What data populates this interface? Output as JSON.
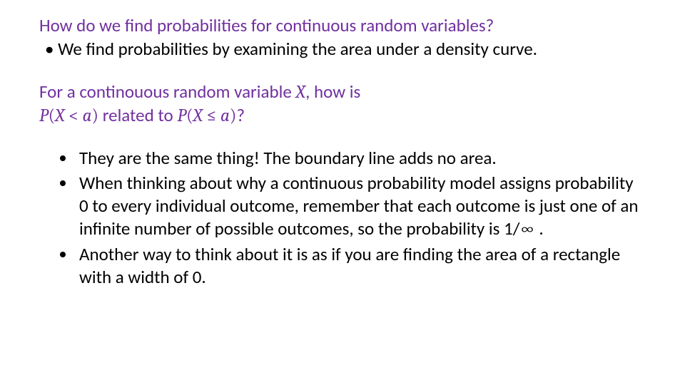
{
  "colors": {
    "heading": "#7030a0",
    "body": "#000000",
    "background": "#ffffff"
  },
  "typography": {
    "body_font": "Calibri",
    "math_font": "Cambria Math",
    "body_size_pt": 19,
    "line_height": 1.28
  },
  "q1": {
    "heading": "How do we find probabilities for continuous random variables?",
    "answer_bullet": "• We find probabilities by examining the area under a density curve."
  },
  "q2": {
    "line1_prefix": "For a continouous random variable ",
    "line1_var": "X",
    "line1_suffix": ", how is",
    "line2_p1_open": "P",
    "line2_p1_paren_open": "(",
    "line2_p1_var": "X",
    "line2_p1_op": " < ",
    "line2_p1_a": "a",
    "line2_p1_paren_close": ")",
    "line2_mid": " related to ",
    "line2_p2_open": "P",
    "line2_p2_paren_open": "(",
    "line2_p2_var": "X",
    "line2_p2_op": " ≤ ",
    "line2_p2_a": "a",
    "line2_p2_paren_close": ")",
    "line2_end": "?"
  },
  "bullets": {
    "b1": "They are the same thing!  The boundary line adds no area.",
    "b2_a": "When thinking about why a continuous probability model assigns probability 0 to every individual outcome, remember that each outcome is just one of an infinite number of possible outcomes, so the probability is 1/",
    "b2_inf": "∞",
    "b2_b": " .",
    "b3": "Another way to think about it is as if you are finding the area of a rectangle with a width of 0."
  }
}
